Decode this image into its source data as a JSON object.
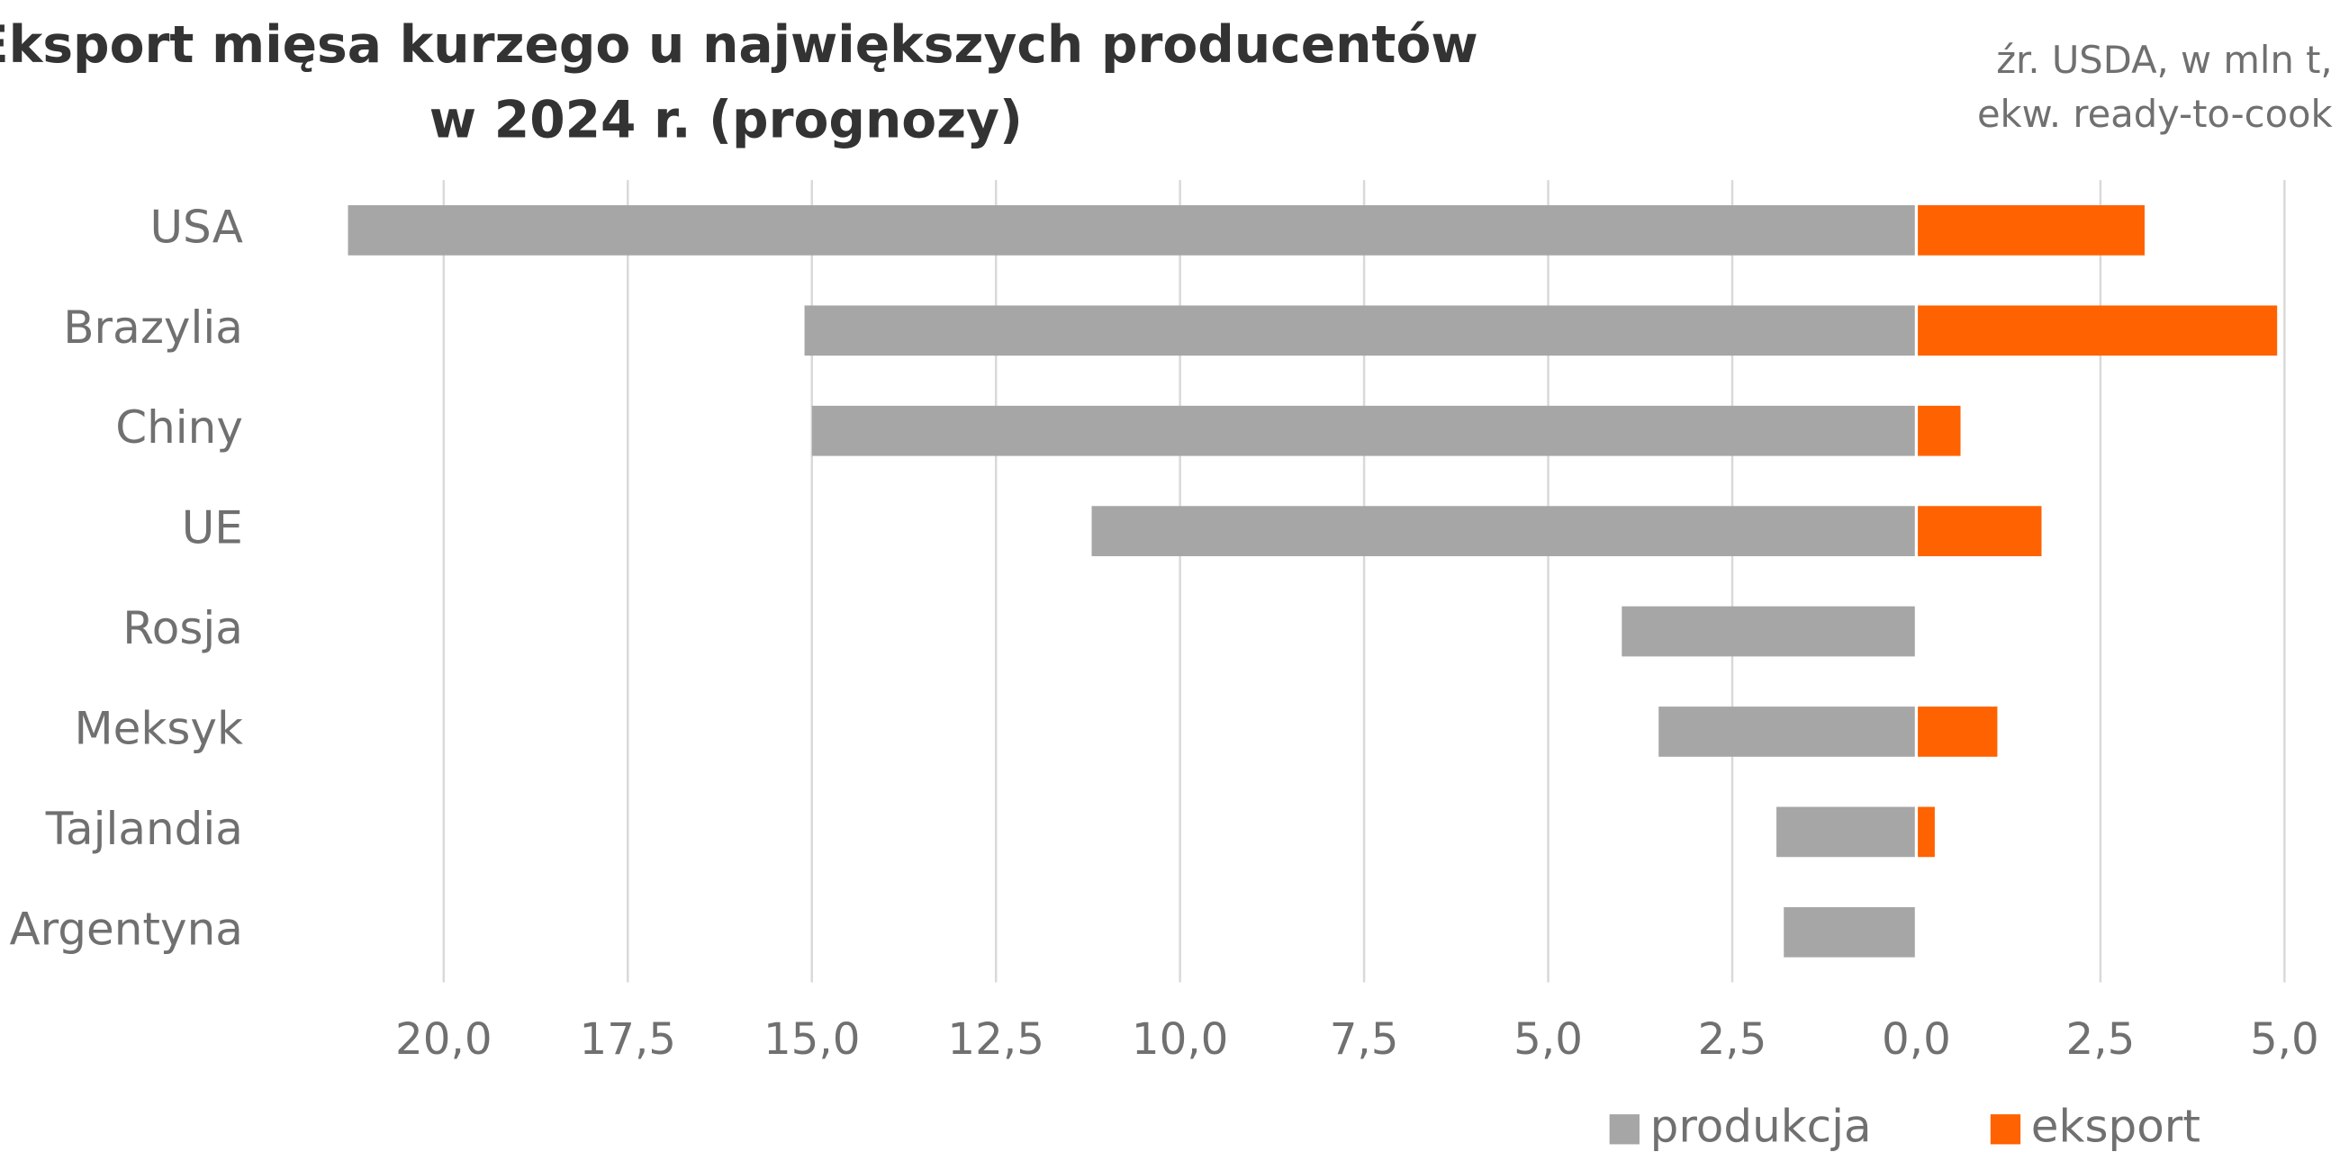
{
  "chart_data": {
    "type": "butterfly",
    "title": [
      "Eksport mięsa kurzego u największych producentów",
      "w 2024 r. (prognozy)"
    ],
    "subtitle": [
      "źr. USDA, w mln t,",
      "ekw. ready-to-cook"
    ],
    "categories": [
      "USA",
      "Brazylia",
      "Chiny",
      "UE",
      "Rosja",
      "Meksyk",
      "Tajlandia",
      "Argentyna"
    ],
    "series": [
      {
        "name": "produkcja",
        "color": "#a6a6a6",
        "side": "left",
        "values": [
          21.3,
          15.1,
          15.0,
          11.2,
          4.0,
          3.5,
          1.9,
          1.8
        ],
        "xlim": [
          0,
          21.3
        ],
        "xticks": [
          {
            "value": 20,
            "label": "20,0"
          },
          {
            "value": 17.5,
            "label": "17,5"
          },
          {
            "value": 15,
            "label": "15,0"
          },
          {
            "value": 12.5,
            "label": "12,5"
          },
          {
            "value": 10,
            "label": "10,0"
          },
          {
            "value": 7.5,
            "label": "7,5"
          },
          {
            "value": 5,
            "label": "5,0"
          },
          {
            "value": 2.5,
            "label": "2,5"
          },
          {
            "value": 0,
            "label": "0,0"
          }
        ]
      },
      {
        "name": "eksport",
        "color": "#ff6200",
        "side": "right",
        "values": [
          3.1,
          4.9,
          0.6,
          1.7,
          0,
          1.1,
          0.25,
          0
        ],
        "xlim": [
          0,
          5
        ],
        "xticks": [
          {
            "value": 2.5,
            "label": "2,5"
          },
          {
            "value": 5,
            "label": "5,0"
          }
        ]
      }
    ],
    "grid": true
  }
}
